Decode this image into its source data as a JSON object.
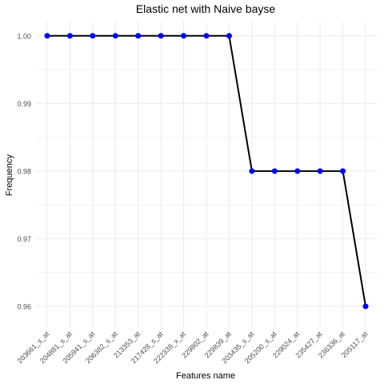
{
  "chart_data": {
    "type": "line",
    "title": "Elastic net  with Naive bayse",
    "xlabel": "Features name",
    "ylabel": "Frequency",
    "categories": [
      "203661_s_at",
      "204881_s_at",
      "205941_s_at",
      "206382_s_at",
      "213353_at",
      "217428_s_at",
      "222338_x_at",
      "229802_at",
      "229839_at",
      "203435_s_at",
      "205200_s_at",
      "229024_at",
      "235427_at",
      "236336_at",
      "205117_at"
    ],
    "values": [
      1.0,
      1.0,
      1.0,
      1.0,
      1.0,
      1.0,
      1.0,
      1.0,
      1.0,
      0.98,
      0.98,
      0.98,
      0.98,
      0.98,
      0.96
    ],
    "ylim": [
      0.9568,
      1.0021
    ],
    "yticks": [
      0.96,
      0.97,
      0.98,
      0.99,
      1.0
    ],
    "ytick_labels": [
      "0.96",
      "0.97",
      "0.98",
      "0.99",
      "1.00"
    ],
    "grid": true,
    "line_color": "#000000",
    "point_color": "#0000ff",
    "grid_color": "#ebebeb"
  }
}
